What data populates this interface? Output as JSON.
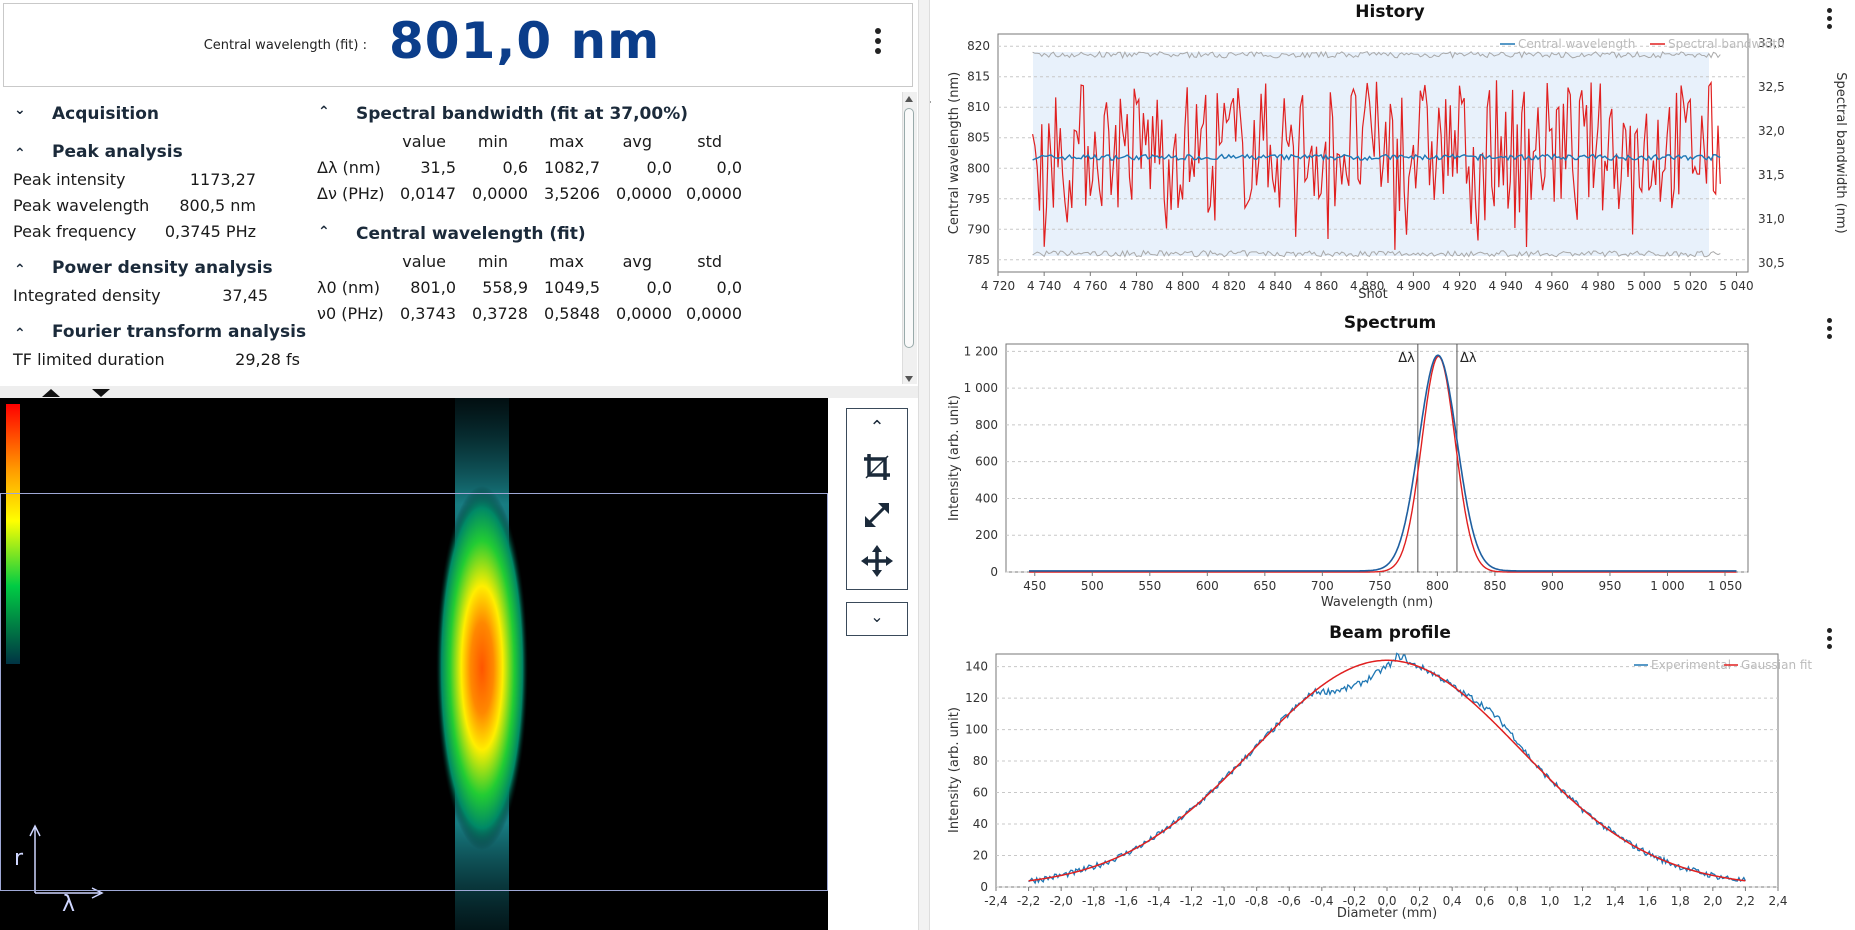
{
  "header": {
    "label": "Central wavelength (fit) :",
    "value": "801,0 nm"
  },
  "panel": {
    "acquisition": "Acquisition",
    "peak": {
      "title": "Peak analysis",
      "rows": [
        {
          "label": "Peak intensity",
          "value": "1173,27"
        },
        {
          "label": "Peak wavelength",
          "value": "800,5 nm"
        },
        {
          "label": "Peak frequency",
          "value": "0,3745 PHz"
        }
      ]
    },
    "power": {
      "title": "Power density analysis",
      "rows": [
        {
          "label": "Integrated density",
          "value": "37,45"
        }
      ]
    },
    "fourier": {
      "title": "Fourier transform analysis",
      "rows": [
        {
          "label": "TF limited duration",
          "value": "29,28 fs"
        }
      ]
    },
    "columns": [
      "value",
      "min",
      "max",
      "avg",
      "std"
    ],
    "bandwidth": {
      "title": "Spectral bandwidth (fit at 37,00%)",
      "rows": [
        {
          "label": "Δλ (nm)",
          "cells": [
            "31,5",
            "0,6",
            "1082,7",
            "0,0",
            "0,0"
          ]
        },
        {
          "label": "Δν (PHz)",
          "cells": [
            "0,0147",
            "0,0000",
            "3,5206",
            "0,0000",
            "0,0000"
          ]
        }
      ]
    },
    "central": {
      "title": "Central wavelength (fit)",
      "rows": [
        {
          "label": "λ0 (nm)",
          "cells": [
            "801,0",
            "558,9",
            "1049,5",
            "0,0",
            "0,0"
          ]
        },
        {
          "label": "ν0 (PHz)",
          "cells": [
            "0,3743",
            "0,3728",
            "0,5848",
            "0,0000",
            "0,0000"
          ]
        }
      ]
    }
  },
  "image": {
    "axis_r": "r",
    "axis_lambda": "λ"
  },
  "charts": {
    "history": {
      "title": "History",
      "legend": [
        "Central wavelength",
        "Spectral bandwidth"
      ],
      "xlabel": "Shot",
      "ylabel_left": "Central wavelength (nm)",
      "ylabel_right": "Spectral bandwidth (nm)",
      "xticks": [
        "4 720",
        "4 740",
        "4 760",
        "4 780",
        "4 800",
        "4 820",
        "4 840",
        "4 860",
        "4 880",
        "4 900",
        "4 920",
        "4 940",
        "4 960",
        "4 980",
        "5 000",
        "5 020",
        "5 040"
      ],
      "yticks_left": [
        "785",
        "790",
        "795",
        "800",
        "805",
        "810",
        "815",
        "820"
      ],
      "yticks_right": [
        "30,5",
        "31,0",
        "31,5",
        "32,0",
        "32,5",
        "33,0"
      ]
    },
    "spectrum": {
      "title": "Spectrum",
      "xlabel": "Wavelength (nm)",
      "ylabel": "Intensity (arb. unit)",
      "marker": "Δλ",
      "xticks": [
        "450",
        "500",
        "550",
        "600",
        "650",
        "700",
        "750",
        "800",
        "850",
        "900",
        "950",
        "1 000",
        "1 050"
      ],
      "yticks": [
        "0",
        "200",
        "400",
        "600",
        "800",
        "1 000",
        "1 200"
      ]
    },
    "beam": {
      "title": "Beam profile",
      "legend": [
        "Experimental",
        "Gaussian fit"
      ],
      "xlabel": "Diameter (mm)",
      "ylabel": "Intensity (arb. unit)",
      "xticks": [
        "-2,4",
        "-2,2",
        "-2,0",
        "-1,8",
        "-1,6",
        "-1,4",
        "-1,2",
        "-1,0",
        "-0,8",
        "-0,6",
        "-0,4",
        "-0,2",
        "0,0",
        "0,2",
        "0,4",
        "0,6",
        "0,8",
        "1,0",
        "1,2",
        "1,4",
        "1,6",
        "1,8",
        "2,0",
        "2,2",
        "2,4"
      ],
      "yticks": [
        "0",
        "20",
        "40",
        "60",
        "80",
        "100",
        "120",
        "140"
      ]
    }
  },
  "chart_data": [
    {
      "type": "line",
      "title": "History",
      "xlabel": "Shot",
      "ylabel": "Central wavelength (nm)",
      "xlim": [
        4720,
        5045
      ],
      "ylim": [
        783,
        822
      ],
      "y2lim": [
        30.4,
        33.1
      ],
      "series": [
        {
          "name": "Central wavelength",
          "x_range": [
            4735,
            5033
          ],
          "approx_value": 802
        },
        {
          "name": "Spectral bandwidth",
          "x_range": [
            4735,
            5033
          ],
          "approx_range": [
            30.5,
            32.9
          ]
        }
      ],
      "colors": {
        "central": "#1f77b4",
        "bandwidth": "#e02020"
      }
    },
    {
      "type": "line",
      "title": "Spectrum",
      "xlabel": "Wavelength (nm)",
      "ylabel": "Intensity (arb. unit)",
      "xlim": [
        425,
        1070
      ],
      "ylim": [
        0,
        1240
      ],
      "peak": {
        "x": 800.5,
        "y": 1173
      },
      "fwhm_markers": [
        783,
        817
      ]
    },
    {
      "type": "line",
      "title": "Beam profile",
      "xlabel": "Diameter (mm)",
      "ylabel": "Intensity (arb. unit)",
      "xlim": [
        -2.4,
        2.4
      ],
      "ylim": [
        0,
        148
      ],
      "series": [
        {
          "name": "Experimental",
          "x_range": [
            -2.2,
            2.2
          ]
        },
        {
          "name": "Gaussian fit",
          "center": 0.0,
          "amplitude": 144,
          "sigma": 0.82
        }
      ]
    }
  ]
}
